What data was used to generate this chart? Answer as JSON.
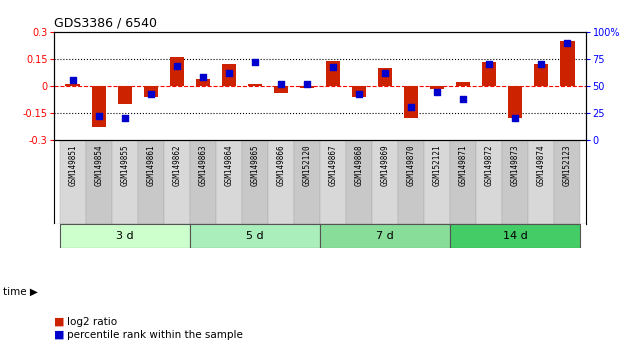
{
  "title": "GDS3386 / 6540",
  "samples": [
    "GSM149851",
    "GSM149854",
    "GSM149855",
    "GSM149861",
    "GSM149862",
    "GSM149863",
    "GSM149864",
    "GSM149865",
    "GSM149866",
    "GSM152120",
    "GSM149867",
    "GSM149868",
    "GSM149869",
    "GSM149870",
    "GSM152121",
    "GSM149871",
    "GSM149872",
    "GSM149873",
    "GSM149874",
    "GSM152123"
  ],
  "log2_ratio": [
    0.01,
    -0.23,
    -0.1,
    -0.06,
    0.16,
    0.04,
    0.12,
    0.01,
    -0.04,
    -0.01,
    0.14,
    -0.06,
    0.1,
    -0.18,
    -0.02,
    0.02,
    0.13,
    -0.18,
    0.12,
    0.25
  ],
  "percentile_rank": [
    55,
    22,
    20,
    42,
    68,
    58,
    62,
    72,
    52,
    52,
    67,
    42,
    62,
    30,
    44,
    38,
    70,
    20,
    70,
    90
  ],
  "groups": [
    {
      "label": "3 d",
      "start": 0,
      "end": 4,
      "color": "#ccffcc"
    },
    {
      "label": "5 d",
      "start": 5,
      "end": 9,
      "color": "#aaeebb"
    },
    {
      "label": "7 d",
      "start": 10,
      "end": 14,
      "color": "#88dd99"
    },
    {
      "label": "14 d",
      "start": 15,
      "end": 19,
      "color": "#44cc66"
    }
  ],
  "ylim_left": [
    -0.3,
    0.3
  ],
  "ylim_right": [
    0,
    100
  ],
  "yticks_left": [
    -0.3,
    -0.15,
    0.0,
    0.15,
    0.3
  ],
  "yticks_right": [
    0,
    25,
    50,
    75,
    100
  ],
  "ytick_labels_left": [
    "-0.3",
    "-0.15",
    "0",
    "0.15",
    "0.3"
  ],
  "ytick_labels_right": [
    "0",
    "25",
    "50",
    "75",
    "100%"
  ],
  "hlines_dotted": [
    -0.15,
    0.15
  ],
  "hline_dashed": 0.0,
  "bar_color": "#cc2200",
  "dot_color": "#0000cc",
  "bar_width": 0.55,
  "dot_size": 18,
  "background_color": "#ffffff",
  "label_bg_even": "#d8d8d8",
  "label_bg_odd": "#c8c8c8",
  "legend_items": [
    {
      "color": "#cc2200",
      "label": "log2 ratio"
    },
    {
      "color": "#0000cc",
      "label": "percentile rank within the sample"
    }
  ]
}
